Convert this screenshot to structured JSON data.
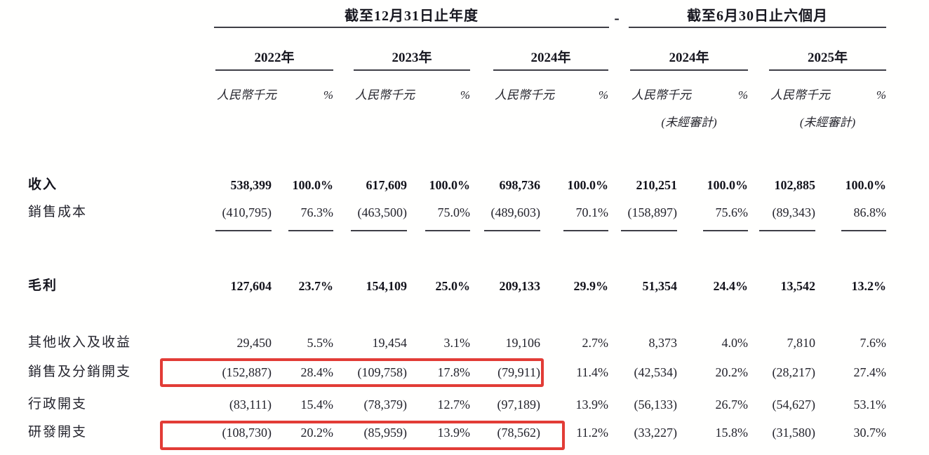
{
  "table": {
    "section_annual_title": "截至12月31日止年度",
    "section_interim_title": "截至6月30日止六個月",
    "section_separator": "-",
    "year_groups": [
      {
        "year": "2022年",
        "unit": "人民幣千元",
        "pct": "%",
        "note": ""
      },
      {
        "year": "2023年",
        "unit": "人民幣千元",
        "pct": "%",
        "note": ""
      },
      {
        "year": "2024年",
        "unit": "人民幣千元",
        "pct": "%",
        "note": ""
      },
      {
        "year": "2024年",
        "unit": "人民幣千元",
        "pct": "%",
        "note": "(未經審計)"
      },
      {
        "year": "2025年",
        "unit": "人民幣千元",
        "pct": "%",
        "note": "(未經審計)"
      }
    ],
    "rows": [
      {
        "label": "收入",
        "bold": true,
        "underline": false,
        "highlighted": false,
        "values": [
          "538,399",
          "100.0%",
          "617,609",
          "100.0%",
          "698,736",
          "100.0%",
          "210,251",
          "100.0%",
          "102,885",
          "100.0%"
        ]
      },
      {
        "label": "銷售成本",
        "bold": false,
        "underline": true,
        "highlighted": false,
        "values": [
          "(410,795)",
          "76.3%",
          "(463,500)",
          "75.0%",
          "(489,603)",
          "70.1%",
          "(158,897)",
          "75.6%",
          "(89,343)",
          "86.8%"
        ]
      },
      {
        "label": "毛利",
        "bold": true,
        "underline": false,
        "highlighted": false,
        "values": [
          "127,604",
          "23.7%",
          "154,109",
          "25.0%",
          "209,133",
          "29.9%",
          "51,354",
          "24.4%",
          "13,542",
          "13.2%"
        ]
      },
      {
        "label": "其他收入及收益",
        "bold": false,
        "underline": false,
        "highlighted": false,
        "values": [
          "29,450",
          "5.5%",
          "19,454",
          "3.1%",
          "19,106",
          "2.7%",
          "8,373",
          "4.0%",
          "7,810",
          "7.6%"
        ]
      },
      {
        "label": "銷售及分銷開支",
        "bold": false,
        "underline": false,
        "highlighted": true,
        "values": [
          "(152,887)",
          "28.4%",
          "(109,758)",
          "17.8%",
          "(79,911)",
          "11.4%",
          "(42,534)",
          "20.2%",
          "(28,217)",
          "27.4%"
        ]
      },
      {
        "label": "行政開支",
        "bold": false,
        "underline": false,
        "highlighted": false,
        "values": [
          "(83,111)",
          "15.4%",
          "(78,379)",
          "12.7%",
          "(97,189)",
          "13.9%",
          "(56,133)",
          "26.7%",
          "(54,627)",
          "53.1%"
        ]
      },
      {
        "label": "研發開支",
        "bold": false,
        "underline": false,
        "highlighted": true,
        "values": [
          "(108,730)",
          "20.2%",
          "(85,959)",
          "13.9%",
          "(78,562)",
          "11.2%",
          "(33,227)",
          "15.8%",
          "(31,580)",
          "30.7%"
        ]
      }
    ],
    "highlight_color": "#e23c36"
  }
}
